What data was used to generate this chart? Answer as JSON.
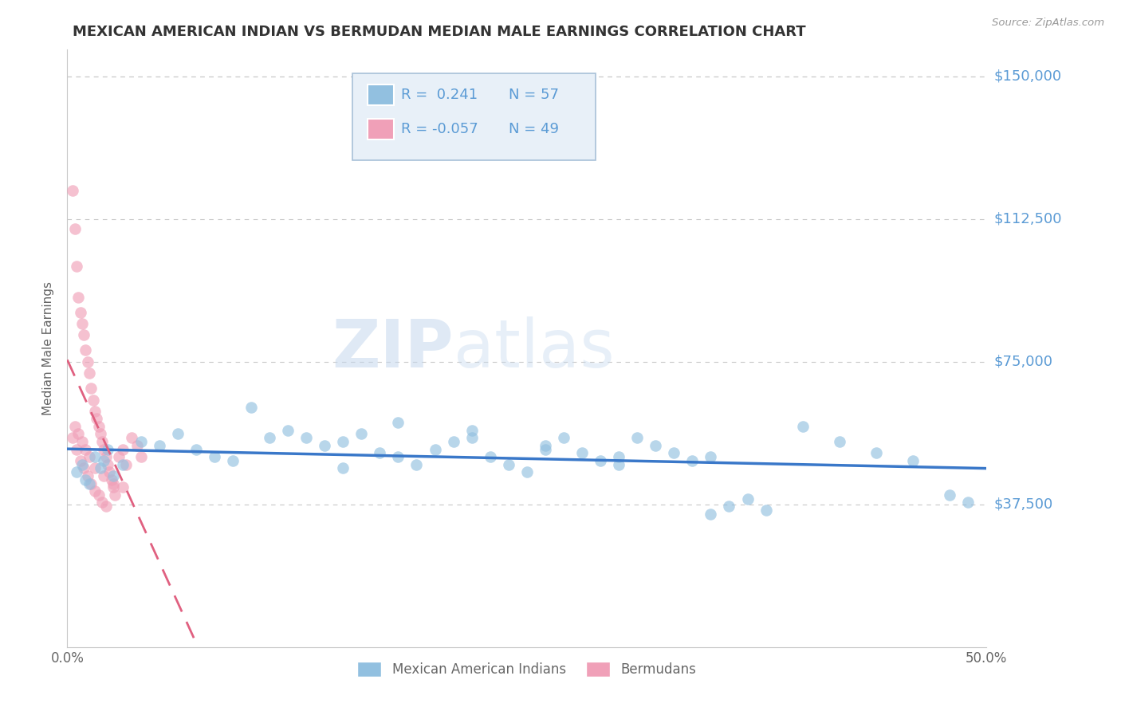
{
  "title": "MEXICAN AMERICAN INDIAN VS BERMUDAN MEDIAN MALE EARNINGS CORRELATION CHART",
  "source": "Source: ZipAtlas.com",
  "ylabel": "Median Male Earnings",
  "yticks": [
    0,
    37500,
    75000,
    112500,
    150000
  ],
  "ytick_labels": [
    "",
    "$37,500",
    "$75,000",
    "$112,500",
    "$150,000"
  ],
  "ylim": [
    0,
    157000
  ],
  "xlim": [
    0.0,
    0.5
  ],
  "legend_blue_R": "0.241",
  "legend_blue_N": "57",
  "legend_pink_R": "-0.057",
  "legend_pink_N": "49",
  "watermark_zip": "ZIP",
  "watermark_atlas": "atlas",
  "blue_color": "#92c0e0",
  "pink_color": "#f0a0b8",
  "blue_line_color": "#3a78c9",
  "pink_line_color": "#e06080",
  "blue_scatter_x": [
    0.005,
    0.008,
    0.01,
    0.012,
    0.015,
    0.018,
    0.02,
    0.022,
    0.025,
    0.03,
    0.04,
    0.05,
    0.06,
    0.07,
    0.08,
    0.09,
    0.1,
    0.11,
    0.12,
    0.13,
    0.14,
    0.15,
    0.16,
    0.17,
    0.18,
    0.19,
    0.2,
    0.21,
    0.22,
    0.23,
    0.24,
    0.25,
    0.26,
    0.27,
    0.28,
    0.29,
    0.3,
    0.31,
    0.32,
    0.33,
    0.34,
    0.35,
    0.36,
    0.37,
    0.38,
    0.4,
    0.42,
    0.44,
    0.46,
    0.48,
    0.49,
    0.18,
    0.22,
    0.26,
    0.15,
    0.3,
    0.35
  ],
  "blue_scatter_y": [
    46000,
    48000,
    44000,
    43000,
    50000,
    47000,
    49000,
    52000,
    45000,
    48000,
    54000,
    53000,
    56000,
    52000,
    50000,
    49000,
    63000,
    55000,
    57000,
    55000,
    53000,
    54000,
    56000,
    51000,
    50000,
    48000,
    52000,
    54000,
    57000,
    50000,
    48000,
    46000,
    53000,
    55000,
    51000,
    49000,
    50000,
    55000,
    53000,
    51000,
    49000,
    35000,
    37000,
    39000,
    36000,
    58000,
    54000,
    51000,
    49000,
    40000,
    38000,
    59000,
    55000,
    52000,
    47000,
    48000,
    50000
  ],
  "pink_scatter_x": [
    0.003,
    0.004,
    0.005,
    0.006,
    0.007,
    0.008,
    0.009,
    0.01,
    0.011,
    0.012,
    0.013,
    0.014,
    0.015,
    0.016,
    0.017,
    0.018,
    0.019,
    0.02,
    0.021,
    0.022,
    0.023,
    0.024,
    0.025,
    0.026,
    0.028,
    0.03,
    0.032,
    0.035,
    0.038,
    0.04,
    0.003,
    0.005,
    0.007,
    0.009,
    0.011,
    0.013,
    0.015,
    0.017,
    0.019,
    0.021,
    0.004,
    0.006,
    0.008,
    0.01,
    0.012,
    0.025,
    0.03,
    0.02,
    0.015
  ],
  "pink_scatter_y": [
    120000,
    110000,
    100000,
    92000,
    88000,
    85000,
    82000,
    78000,
    75000,
    72000,
    68000,
    65000,
    62000,
    60000,
    58000,
    56000,
    54000,
    52000,
    50000,
    48000,
    46000,
    44000,
    42000,
    40000,
    50000,
    52000,
    48000,
    55000,
    53000,
    50000,
    55000,
    52000,
    49000,
    47000,
    45000,
    43000,
    41000,
    40000,
    38000,
    37000,
    58000,
    56000,
    54000,
    52000,
    50000,
    43000,
    42000,
    45000,
    47000
  ],
  "background_color": "#ffffff",
  "grid_color": "#c8c8c8",
  "title_color": "#333333",
  "axis_label_color": "#666666",
  "right_label_color": "#5b9bd5",
  "legend_box_color": "#e8f0f8",
  "legend_border_color": "#a8c0d8"
}
